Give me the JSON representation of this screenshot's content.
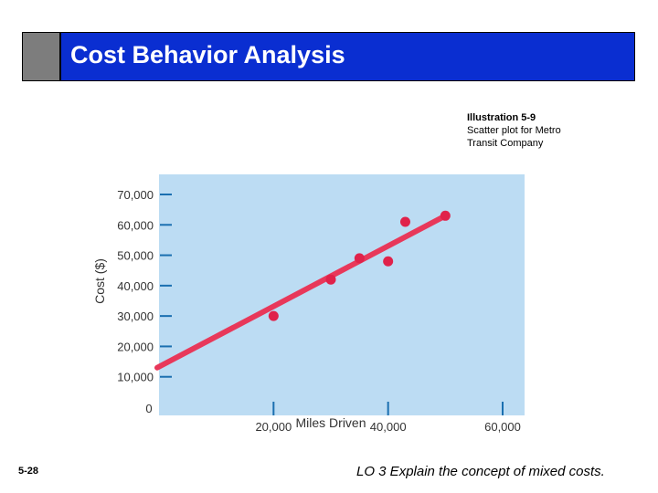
{
  "header": {
    "title": "Cost Behavior Analysis"
  },
  "caption": {
    "line1": "Illustration 5-9",
    "line2": "Scatter plot for Metro",
    "line3": "Transit Company"
  },
  "chart_data": {
    "type": "scatter",
    "xlabel": "Miles Driven",
    "ylabel": "Cost ($)",
    "xlim": [
      0,
      60000
    ],
    "ylim": [
      0,
      70000
    ],
    "x_ticks": [
      20000,
      40000,
      60000
    ],
    "x_tick_labels": [
      "20,000",
      "40,000",
      "60,000"
    ],
    "y_ticks": [
      10000,
      20000,
      30000,
      40000,
      50000,
      60000,
      70000
    ],
    "y_tick_labels": [
      "10,000",
      "20,000",
      "30,000",
      "40,000",
      "50,000",
      "60,000",
      "70,000"
    ],
    "origin_label": "0",
    "points": [
      {
        "x": 20000,
        "y": 30000
      },
      {
        "x": 30000,
        "y": 42000
      },
      {
        "x": 35000,
        "y": 49000
      },
      {
        "x": 40000,
        "y": 48000
      },
      {
        "x": 43000,
        "y": 61000
      },
      {
        "x": 50000,
        "y": 63000
      }
    ],
    "trend_line": {
      "x": [
        0,
        50000
      ],
      "y": [
        13000,
        63000
      ]
    },
    "colors": {
      "background": "#bcdcf3",
      "points": "#e0224a",
      "trend_line": "#e8385a",
      "axis": "#1a6fb0",
      "text": "#333333"
    },
    "grid": false
  },
  "footer": {
    "slide_number": "5-28",
    "learning_objective": "LO 3  Explain the concept of mixed costs."
  }
}
